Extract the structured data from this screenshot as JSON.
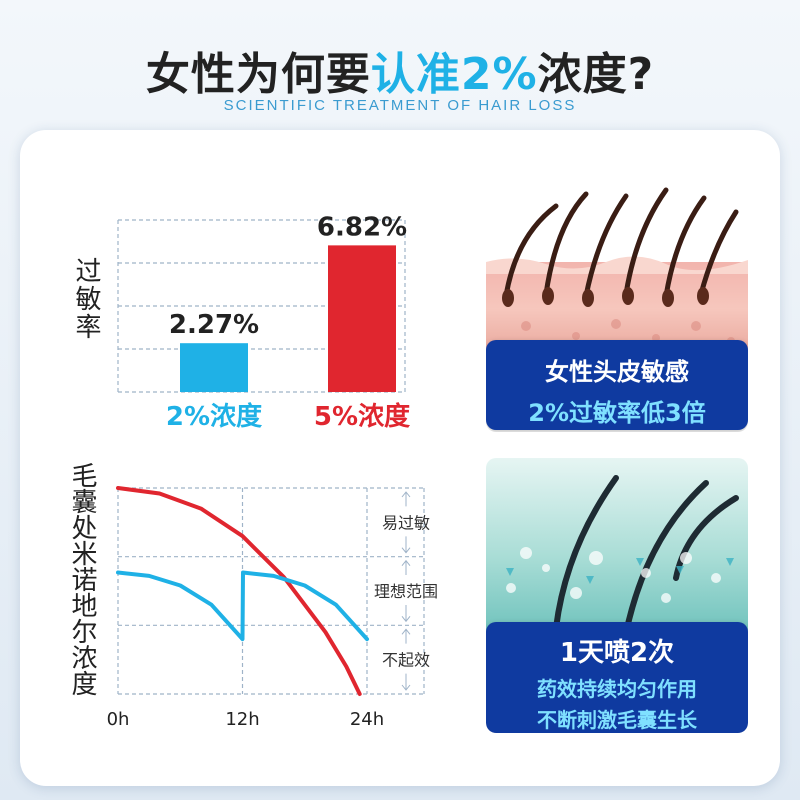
{
  "header": {
    "title_part1": "女性为何要",
    "title_highlight": "认准2%",
    "title_part2": "浓度?",
    "subtitle": "SCIENTIFIC TREATMENT OF HAIR LOSS"
  },
  "colors": {
    "accent_blue": "#1fb1e6",
    "accent_red": "#e0262f",
    "panel_navy": "#0f3aa0",
    "cyan_text": "#7fe0ff"
  },
  "chart_data": [
    {
      "type": "bar",
      "title": "",
      "ylabel": "过敏率",
      "categories": [
        "2%浓度",
        "5%浓度"
      ],
      "values": [
        2.27,
        6.82
      ],
      "value_labels": [
        "2.27%",
        "6.82%"
      ],
      "ylim": [
        0,
        8
      ],
      "grid": true,
      "legend": "none"
    },
    {
      "type": "line",
      "ylabel": "毛囊处米诺地尔浓度",
      "x_ticks": [
        "0h",
        "12h",
        "24h"
      ],
      "xlim": [
        0,
        24
      ],
      "ylim": [
        0,
        3
      ],
      "zones": [
        {
          "label": "易过敏",
          "from": 2,
          "to": 3
        },
        {
          "label": "理想范围",
          "from": 1,
          "to": 2
        },
        {
          "label": "不起效",
          "from": 0,
          "to": 1
        }
      ],
      "series": [
        {
          "color": "#e0262f",
          "x": [
            0,
            4,
            8,
            12,
            16,
            20,
            22,
            23.3
          ],
          "y": [
            3.0,
            2.92,
            2.7,
            2.3,
            1.7,
            0.9,
            0.4,
            0.0
          ]
        },
        {
          "color": "#1fb1e6",
          "x": [
            0,
            3,
            6,
            9,
            12,
            12.05,
            15,
            18,
            21,
            24
          ],
          "y": [
            1.77,
            1.72,
            1.58,
            1.3,
            0.8,
            1.77,
            1.72,
            1.58,
            1.3,
            0.8
          ]
        }
      ],
      "grid": true,
      "legend": "none"
    }
  ],
  "panel_top": {
    "line1": "女性头皮敏感",
    "line2": "2%过敏率低3倍"
  },
  "panel_bottom": {
    "line1": "1天喷2次",
    "line2": "药效持续均匀作用",
    "line3": "不断刺激毛囊生长"
  }
}
